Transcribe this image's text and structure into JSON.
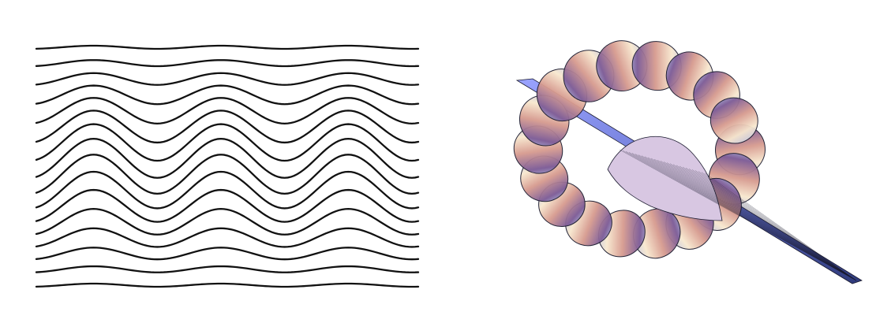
{
  "figure": {
    "background": "#ffffff",
    "panels": [
      {
        "kind": "wave-lines",
        "line_count": 16,
        "line_color": "#111111",
        "wave_crests": 3
      },
      {
        "kind": "3d-surface",
        "shape": "flared horn / trumpet spiral surface",
        "colors": [
          "#9ec8ef",
          "#7a5a92",
          "#cc8b8a",
          "#f0c9a6",
          "#f8eedc"
        ],
        "mesh_color": "#1a1a2e"
      }
    ]
  }
}
